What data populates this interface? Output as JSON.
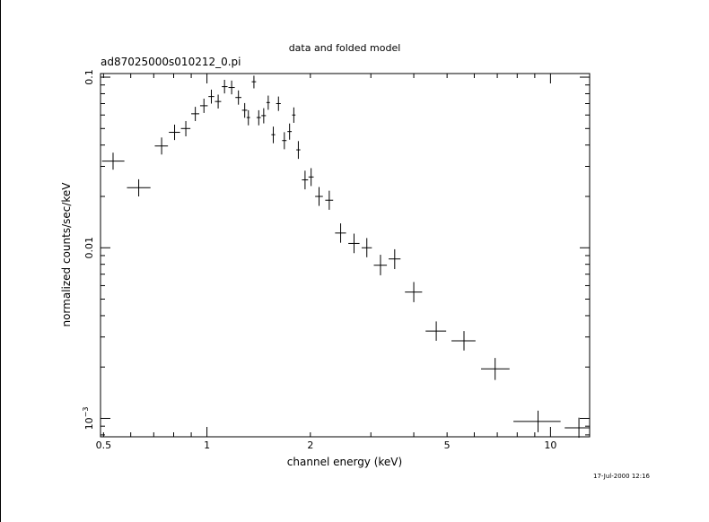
{
  "chart_data": {
    "type": "scatter",
    "title": "data and folded model",
    "subtitle": "ad87025000s010212_0.pi",
    "xlabel": "channel energy (keV)",
    "ylabel": "normalized counts/sec/keV",
    "x_scale": "log",
    "y_scale": "log",
    "xlim": [
      0.49,
      13.0
    ],
    "ylim": [
      0.00078,
      0.105
    ],
    "grid": false,
    "x_tick_labels": [
      {
        "value": 0.5,
        "label": "0.5"
      },
      {
        "value": 1,
        "label": "1"
      },
      {
        "value": 2,
        "label": "2"
      },
      {
        "value": 5,
        "label": "5"
      },
      {
        "value": 10,
        "label": "10"
      }
    ],
    "y_tick_labels": [
      {
        "value": 0.1,
        "label": "0.1"
      },
      {
        "value": 0.01,
        "label": "0.01"
      },
      {
        "value": 0.001,
        "label": "10",
        "sup": "−3"
      }
    ],
    "series": [
      {
        "points": [
          {
            "x": 0.533,
            "xlo": 0.495,
            "xhi": 0.575,
            "y": 0.0322,
            "ylo": 0.0287,
            "yhi": 0.0361
          },
          {
            "x": 0.633,
            "xlo": 0.585,
            "xhi": 0.685,
            "y": 0.0225,
            "ylo": 0.02,
            "yhi": 0.0252
          },
          {
            "x": 0.738,
            "xlo": 0.705,
            "xhi": 0.77,
            "y": 0.0395,
            "ylo": 0.0352,
            "yhi": 0.0443
          },
          {
            "x": 0.805,
            "xlo": 0.775,
            "xhi": 0.835,
            "y": 0.0475,
            "ylo": 0.0428,
            "yhi": 0.0527
          },
          {
            "x": 0.868,
            "xlo": 0.84,
            "xhi": 0.895,
            "y": 0.05,
            "ylo": 0.045,
            "yhi": 0.0553
          },
          {
            "x": 0.925,
            "xlo": 0.9,
            "xhi": 0.95,
            "y": 0.061,
            "ylo": 0.0553,
            "yhi": 0.067
          },
          {
            "x": 0.98,
            "xlo": 0.955,
            "xhi": 1.005,
            "y": 0.068,
            "ylo": 0.0617,
            "yhi": 0.0748
          },
          {
            "x": 1.03,
            "xlo": 1.01,
            "xhi": 1.05,
            "y": 0.077,
            "ylo": 0.07,
            "yhi": 0.0845
          },
          {
            "x": 1.078,
            "xlo": 1.055,
            "xhi": 1.1,
            "y": 0.072,
            "ylo": 0.0655,
            "yhi": 0.079
          },
          {
            "x": 1.125,
            "xlo": 1.105,
            "xhi": 1.148,
            "y": 0.088,
            "ylo": 0.0803,
            "yhi": 0.0965
          },
          {
            "x": 1.18,
            "xlo": 1.155,
            "xhi": 1.205,
            "y": 0.087,
            "ylo": 0.0793,
            "yhi": 0.0955
          },
          {
            "x": 1.235,
            "xlo": 1.21,
            "xhi": 1.26,
            "y": 0.076,
            "ylo": 0.069,
            "yhi": 0.0836
          },
          {
            "x": 1.288,
            "xlo": 1.265,
            "xhi": 1.31,
            "y": 0.064,
            "ylo": 0.0578,
            "yhi": 0.0705
          },
          {
            "x": 1.32,
            "xlo": 1.305,
            "xhi": 1.335,
            "y": 0.058,
            "ylo": 0.0522,
            "yhi": 0.064
          },
          {
            "x": 1.37,
            "xlo": 1.35,
            "xhi": 1.39,
            "y": 0.094,
            "ylo": 0.086,
            "yhi": 0.102
          },
          {
            "x": 1.415,
            "xlo": 1.395,
            "xhi": 1.435,
            "y": 0.058,
            "ylo": 0.0522,
            "yhi": 0.064
          },
          {
            "x": 1.463,
            "xlo": 1.44,
            "xhi": 1.485,
            "y": 0.0595,
            "ylo": 0.0536,
            "yhi": 0.0658
          },
          {
            "x": 1.508,
            "xlo": 1.49,
            "xhi": 1.525,
            "y": 0.071,
            "ylo": 0.0644,
            "yhi": 0.078
          },
          {
            "x": 1.56,
            "xlo": 1.54,
            "xhi": 1.58,
            "y": 0.046,
            "ylo": 0.041,
            "yhi": 0.0513
          },
          {
            "x": 1.615,
            "xlo": 1.59,
            "xhi": 1.64,
            "y": 0.07,
            "ylo": 0.0634,
            "yhi": 0.077
          },
          {
            "x": 1.68,
            "xlo": 1.655,
            "xhi": 1.705,
            "y": 0.0425,
            "ylo": 0.0378,
            "yhi": 0.0476
          },
          {
            "x": 1.74,
            "xlo": 1.715,
            "xhi": 1.765,
            "y": 0.048,
            "ylo": 0.043,
            "yhi": 0.0535
          },
          {
            "x": 1.79,
            "xlo": 1.77,
            "xhi": 1.81,
            "y": 0.06,
            "ylo": 0.054,
            "yhi": 0.0665
          },
          {
            "x": 1.845,
            "xlo": 1.82,
            "xhi": 1.87,
            "y": 0.0375,
            "ylo": 0.0332,
            "yhi": 0.0422
          },
          {
            "x": 1.93,
            "xlo": 1.89,
            "xhi": 1.97,
            "y": 0.025,
            "ylo": 0.022,
            "yhi": 0.0283
          },
          {
            "x": 2.01,
            "xlo": 1.975,
            "xhi": 2.045,
            "y": 0.026,
            "ylo": 0.023,
            "yhi": 0.0293
          },
          {
            "x": 2.12,
            "xlo": 2.065,
            "xhi": 2.175,
            "y": 0.02,
            "ylo": 0.0176,
            "yhi": 0.0227
          },
          {
            "x": 2.27,
            "xlo": 2.21,
            "xhi": 2.33,
            "y": 0.019,
            "ylo": 0.0167,
            "yhi": 0.0216
          },
          {
            "x": 2.45,
            "xlo": 2.36,
            "xhi": 2.54,
            "y": 0.0122,
            "ylo": 0.0107,
            "yhi": 0.0139
          },
          {
            "x": 2.68,
            "xlo": 2.58,
            "xhi": 2.78,
            "y": 0.0106,
            "ylo": 0.0093,
            "yhi": 0.0121
          },
          {
            "x": 2.92,
            "xlo": 2.82,
            "xhi": 3.02,
            "y": 0.01,
            "ylo": 0.0088,
            "yhi": 0.0114
          },
          {
            "x": 3.2,
            "xlo": 3.06,
            "xhi": 3.34,
            "y": 0.0079,
            "ylo": 0.0069,
            "yhi": 0.0091
          },
          {
            "x": 3.52,
            "xlo": 3.38,
            "xhi": 3.66,
            "y": 0.0086,
            "ylo": 0.0075,
            "yhi": 0.0098
          },
          {
            "x": 4.0,
            "xlo": 3.77,
            "xhi": 4.23,
            "y": 0.0055,
            "ylo": 0.0048,
            "yhi": 0.0063
          },
          {
            "x": 4.65,
            "xlo": 4.33,
            "xhi": 4.97,
            "y": 0.00325,
            "ylo": 0.00285,
            "yhi": 0.0037
          },
          {
            "x": 5.6,
            "xlo": 5.15,
            "xhi": 6.05,
            "y": 0.00285,
            "ylo": 0.0025,
            "yhi": 0.00325
          },
          {
            "x": 6.9,
            "xlo": 6.28,
            "xhi": 7.6,
            "y": 0.00195,
            "ylo": 0.00168,
            "yhi": 0.00226
          },
          {
            "x": 9.2,
            "xlo": 7.8,
            "xhi": 10.7,
            "y": 0.00096,
            "ylo": 0.00083,
            "yhi": 0.00111
          },
          {
            "x": 12.1,
            "xlo": 11.0,
            "xhi": 13.0,
            "y": 0.00088,
            "ylo": 0.00077,
            "yhi": 0.00101
          }
        ]
      }
    ]
  },
  "timestamp": "17-Jul-2000 12:16"
}
